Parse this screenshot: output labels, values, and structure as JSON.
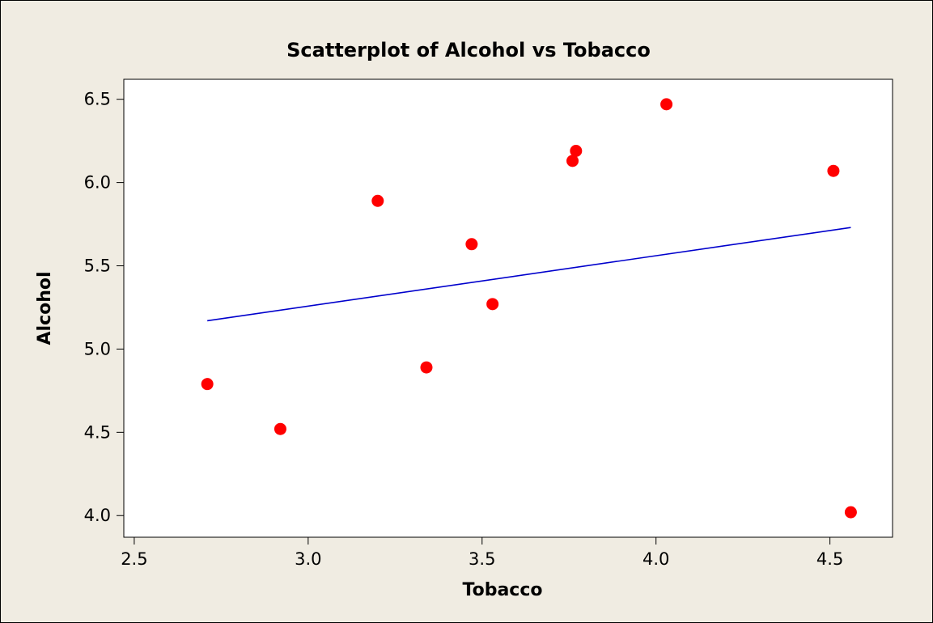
{
  "chart_data": {
    "type": "scatter",
    "title": "Scatterplot of Alcohol vs Tobacco",
    "xlabel": "Tobacco",
    "ylabel": "Alcohol",
    "xlim": [
      2.47,
      4.68
    ],
    "ylim": [
      3.87,
      6.62
    ],
    "xticks": [
      "2.5",
      "3.0",
      "3.5",
      "4.0",
      "4.5"
    ],
    "yticks": [
      "4.0",
      "4.5",
      "5.0",
      "5.5",
      "6.0",
      "6.5"
    ],
    "grid": false,
    "colors": {
      "points": "#FF0000",
      "fit_line": "#0000CC",
      "background": "#F0ECE2",
      "plot_area": "#FFFFFF"
    },
    "series": [
      {
        "points": [
          {
            "x": 2.71,
            "y": 4.79
          },
          {
            "x": 2.92,
            "y": 4.52
          },
          {
            "x": 3.2,
            "y": 5.89
          },
          {
            "x": 3.34,
            "y": 4.89
          },
          {
            "x": 3.47,
            "y": 5.63
          },
          {
            "x": 3.53,
            "y": 5.27
          },
          {
            "x": 3.76,
            "y": 6.13
          },
          {
            "x": 3.77,
            "y": 6.19
          },
          {
            "x": 4.03,
            "y": 6.47
          },
          {
            "x": 4.51,
            "y": 6.07
          },
          {
            "x": 4.56,
            "y": 4.02
          }
        ]
      }
    ],
    "fit_line": {
      "x": [
        2.71,
        4.56
      ],
      "y": [
        5.17,
        5.73
      ]
    }
  }
}
